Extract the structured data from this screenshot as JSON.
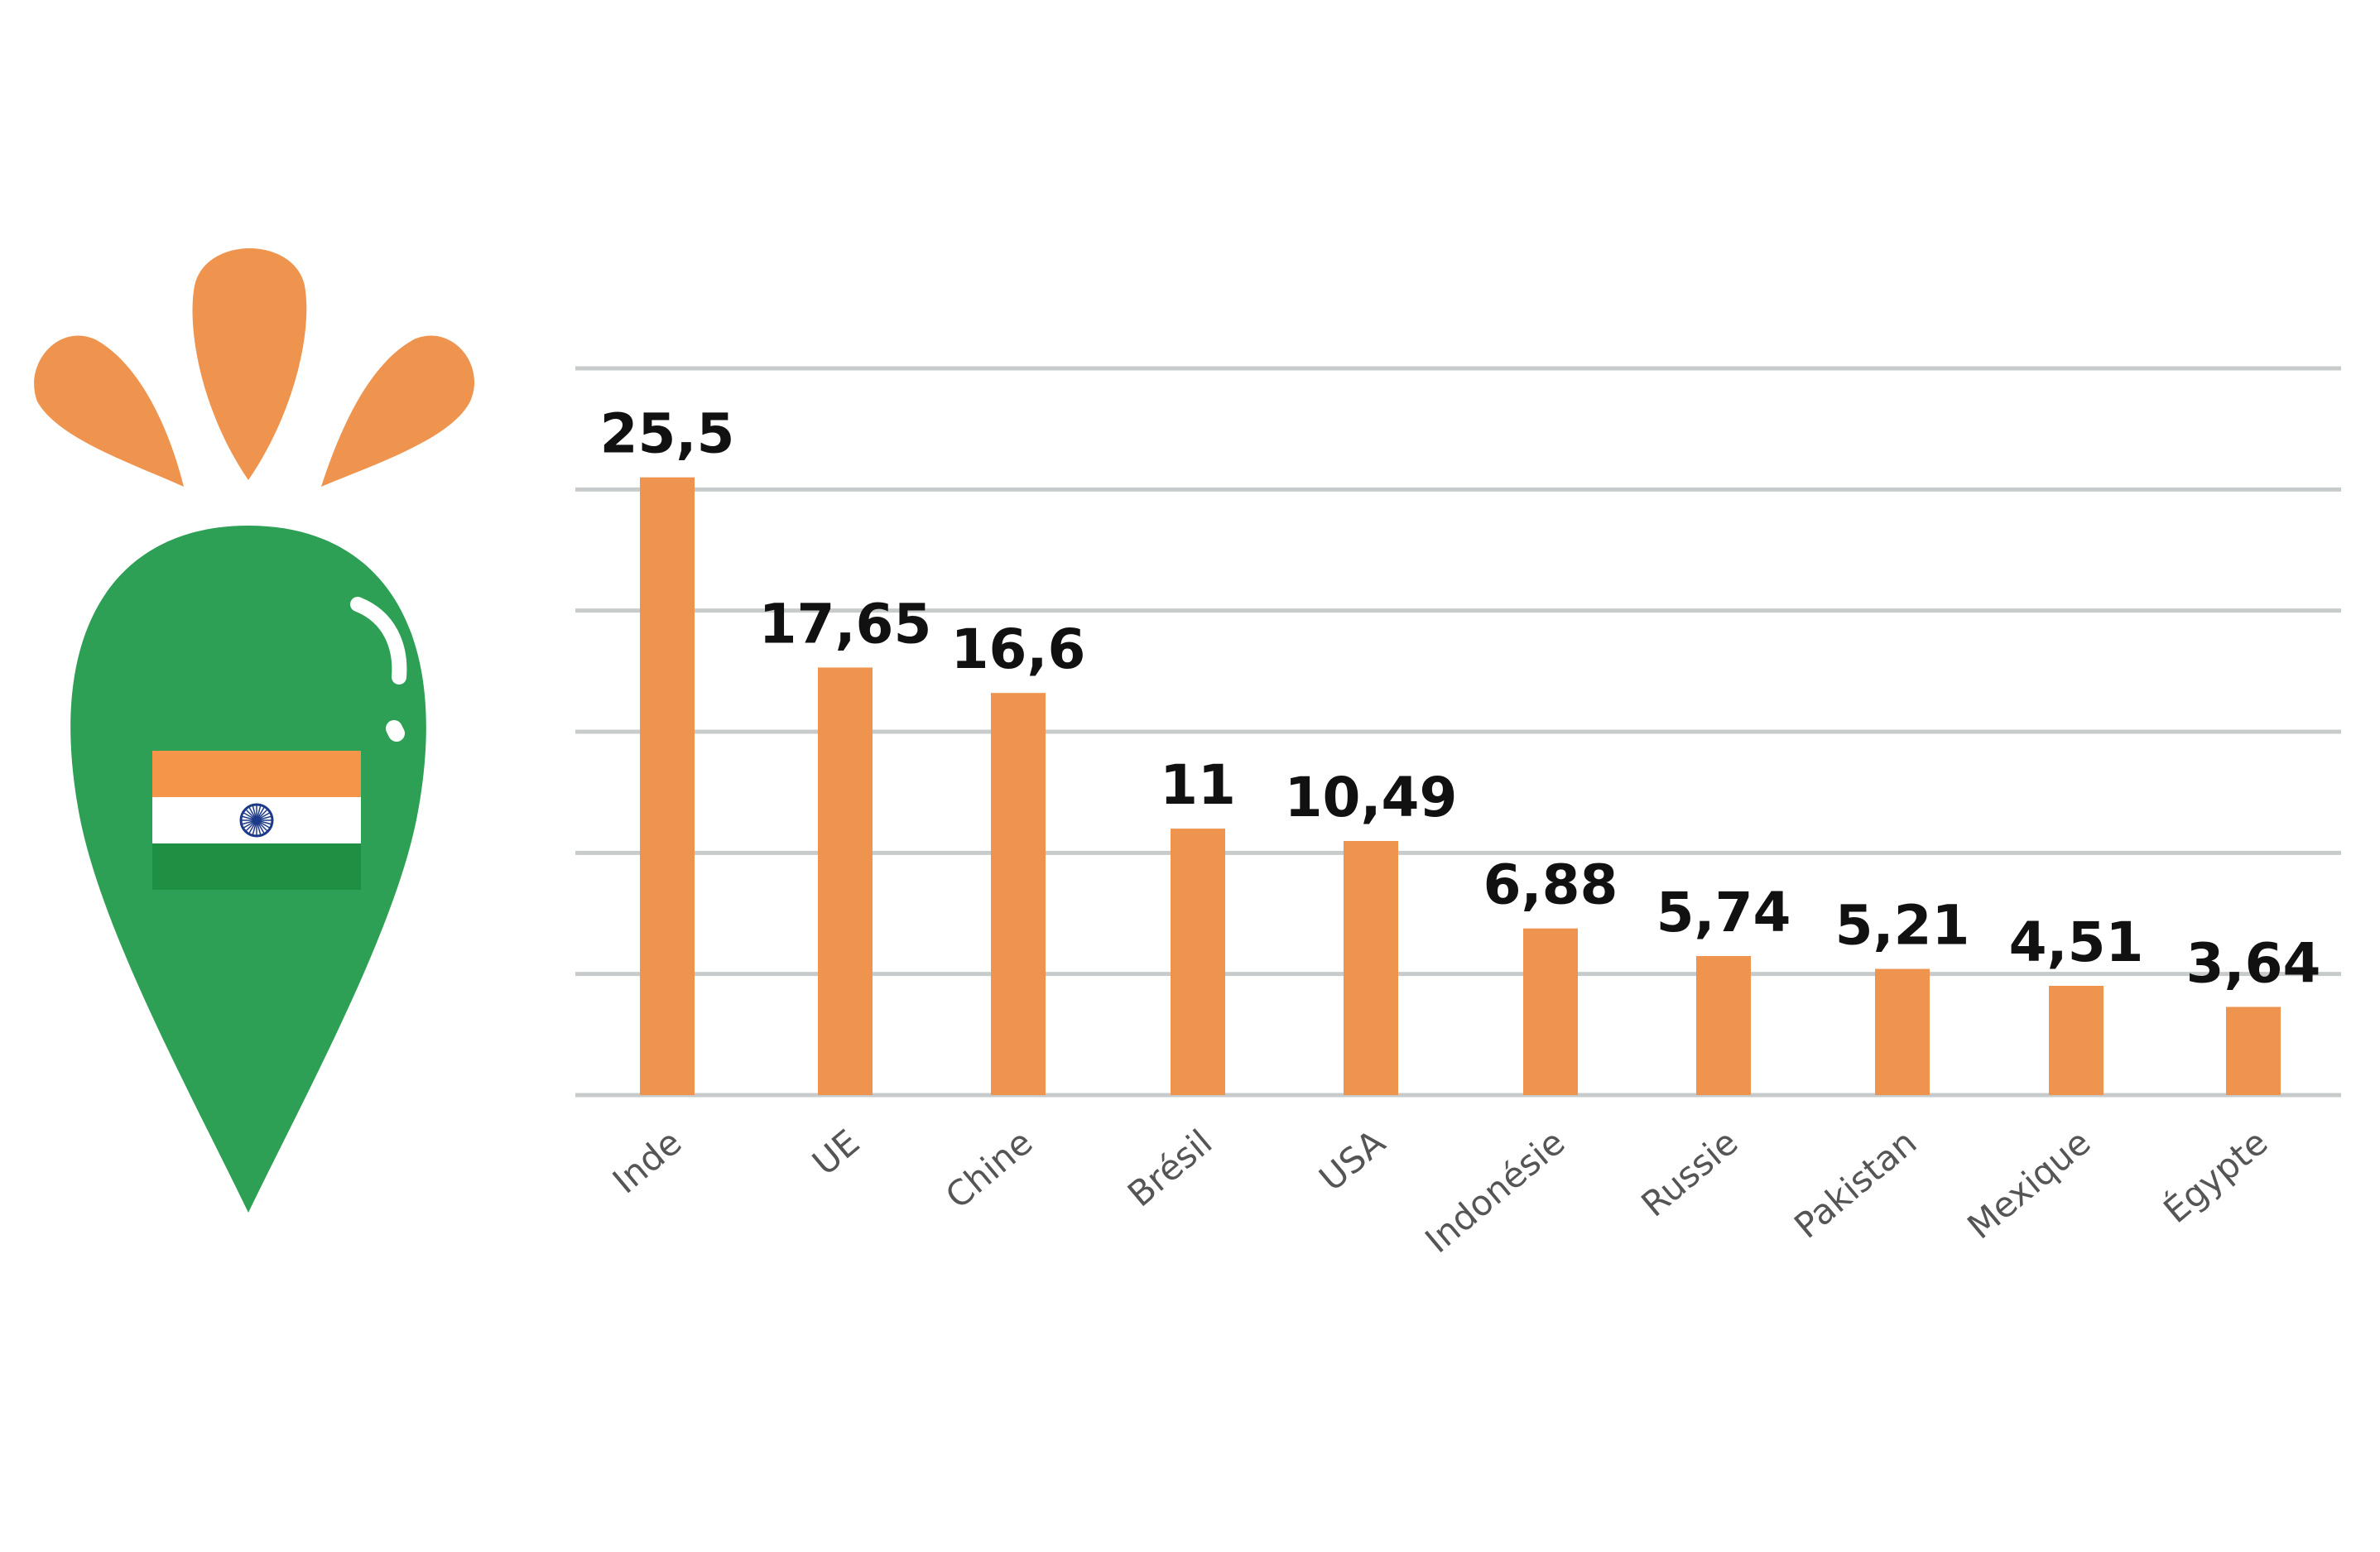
{
  "chart_data": {
    "type": "bar",
    "categories": [
      "Inde",
      "UE",
      "Chine",
      "Brésil",
      "USA",
      "Indonésie",
      "Russie",
      "Pakistan",
      "Mexique",
      "Égypte"
    ],
    "values": [
      25.5,
      17.65,
      16.6,
      11,
      10.49,
      6.88,
      5.74,
      5.21,
      4.51,
      3.64
    ],
    "value_labels": [
      "25,5",
      "17,65",
      "16,6",
      "11",
      "10,49",
      "6,88",
      "5,74",
      "5,21",
      "4,51",
      "3,64"
    ],
    "title": "",
    "xlabel": "",
    "ylabel": "",
    "ylim": [
      0,
      30
    ],
    "grid": true,
    "colors": {
      "bar": "#EF944E",
      "grid": "#C8CBCB",
      "value_text": "#111111",
      "tick_text": "#555555"
    }
  },
  "decoration": {
    "icon": "carrot-with-india-flag-icon",
    "colors": {
      "carrot_body": "#2DA055",
      "carrot_leaves": "#EF944E",
      "flag_saffron": "#F5954A",
      "flag_white": "#FFFFFF",
      "flag_green": "#1F8F44",
      "chakra": "#1D3A8A"
    }
  }
}
